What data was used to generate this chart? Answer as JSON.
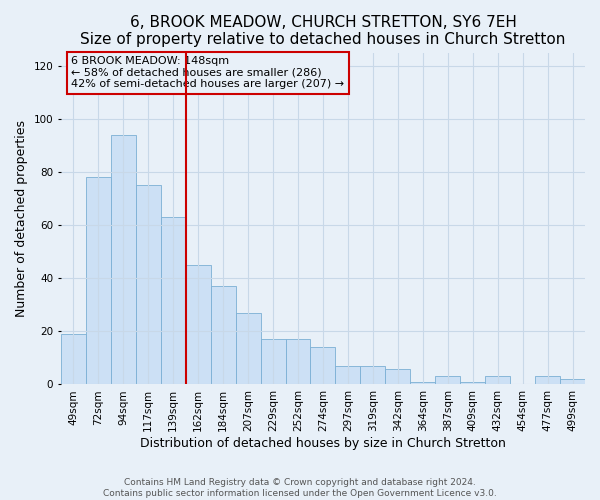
{
  "title": "6, BROOK MEADOW, CHURCH STRETTON, SY6 7EH",
  "subtitle": "Size of property relative to detached houses in Church Stretton",
  "xlabel": "Distribution of detached houses by size in Church Stretton",
  "ylabel": "Number of detached properties",
  "bar_labels": [
    "49sqm",
    "72sqm",
    "94sqm",
    "117sqm",
    "139sqm",
    "162sqm",
    "184sqm",
    "207sqm",
    "229sqm",
    "252sqm",
    "274sqm",
    "297sqm",
    "319sqm",
    "342sqm",
    "364sqm",
    "387sqm",
    "409sqm",
    "432sqm",
    "454sqm",
    "477sqm",
    "499sqm"
  ],
  "bar_values": [
    19,
    78,
    94,
    75,
    63,
    45,
    37,
    27,
    17,
    17,
    14,
    7,
    7,
    6,
    1,
    3,
    1,
    3,
    0,
    3,
    2
  ],
  "bar_color": "#cce0f5",
  "bar_edgecolor": "#7bafd4",
  "vline_x": 4.5,
  "vline_color": "#cc0000",
  "annotation_text": "6 BROOK MEADOW: 148sqm\n← 58% of detached houses are smaller (286)\n42% of semi-detached houses are larger (207) →",
  "annotation_box_edgecolor": "#cc0000",
  "ylim": [
    0,
    125
  ],
  "yticks": [
    0,
    20,
    40,
    60,
    80,
    100,
    120
  ],
  "footer1": "Contains HM Land Registry data © Crown copyright and database right 2024.",
  "footer2": "Contains public sector information licensed under the Open Government Licence v3.0.",
  "background_color": "#e8f0f8",
  "grid_color": "#c8d8e8",
  "title_fontsize": 11,
  "subtitle_fontsize": 9.5,
  "axis_label_fontsize": 9,
  "tick_fontsize": 7.5,
  "annotation_fontsize": 8,
  "footer_fontsize": 6.5
}
